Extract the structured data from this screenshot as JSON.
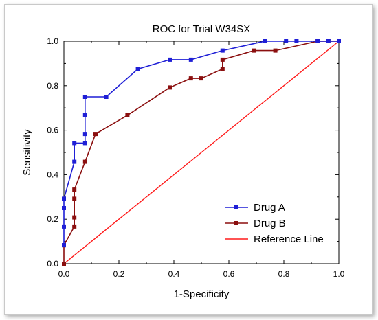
{
  "chart_data": {
    "type": "line",
    "title": "ROC for Trial W34SX",
    "xlabel": "1-Specificity",
    "ylabel": "Sensitivity",
    "xlim": [
      0,
      1
    ],
    "ylim": [
      0,
      1
    ],
    "x_ticks": [
      "0.0",
      "0.2",
      "0.4",
      "0.6",
      "0.8",
      "1.0"
    ],
    "y_ticks": [
      "0.0",
      "0.2",
      "0.4",
      "0.6",
      "0.8",
      "1.0"
    ],
    "grid": false,
    "legend_position": "bottom-right",
    "series": [
      {
        "name": "Drug A",
        "color": "#1f1fd6",
        "marker": "square",
        "points": [
          [
            0.0,
            0.083
          ],
          [
            0.0,
            0.167
          ],
          [
            0.0,
            0.25
          ],
          [
            0.0,
            0.292
          ],
          [
            0.038,
            0.458
          ],
          [
            0.038,
            0.542
          ],
          [
            0.077,
            0.542
          ],
          [
            0.077,
            0.583
          ],
          [
            0.077,
            0.667
          ],
          [
            0.077,
            0.75
          ],
          [
            0.154,
            0.75
          ],
          [
            0.269,
            0.875
          ],
          [
            0.385,
            0.917
          ],
          [
            0.462,
            0.917
          ],
          [
            0.577,
            0.958
          ],
          [
            0.731,
            1.0
          ],
          [
            0.808,
            1.0
          ],
          [
            0.846,
            1.0
          ],
          [
            0.923,
            1.0
          ],
          [
            0.962,
            1.0
          ],
          [
            1.0,
            1.0
          ]
        ]
      },
      {
        "name": "Drug B",
        "color": "#8b0f0f",
        "marker": "square",
        "points": [
          [
            0.0,
            0.0
          ],
          [
            0.0,
            0.083
          ],
          [
            0.038,
            0.167
          ],
          [
            0.038,
            0.208
          ],
          [
            0.038,
            0.292
          ],
          [
            0.038,
            0.333
          ],
          [
            0.077,
            0.458
          ],
          [
            0.115,
            0.583
          ],
          [
            0.231,
            0.667
          ],
          [
            0.385,
            0.792
          ],
          [
            0.462,
            0.833
          ],
          [
            0.5,
            0.833
          ],
          [
            0.577,
            0.875
          ],
          [
            0.577,
            0.917
          ],
          [
            0.692,
            0.958
          ],
          [
            0.769,
            0.958
          ],
          [
            0.923,
            1.0
          ],
          [
            0.962,
            1.0
          ],
          [
            1.0,
            1.0
          ]
        ]
      },
      {
        "name": "Reference Line",
        "color": "#ff1a1a",
        "marker": "none",
        "points": [
          [
            0.0,
            0.0
          ],
          [
            1.0,
            1.0
          ]
        ]
      }
    ]
  }
}
